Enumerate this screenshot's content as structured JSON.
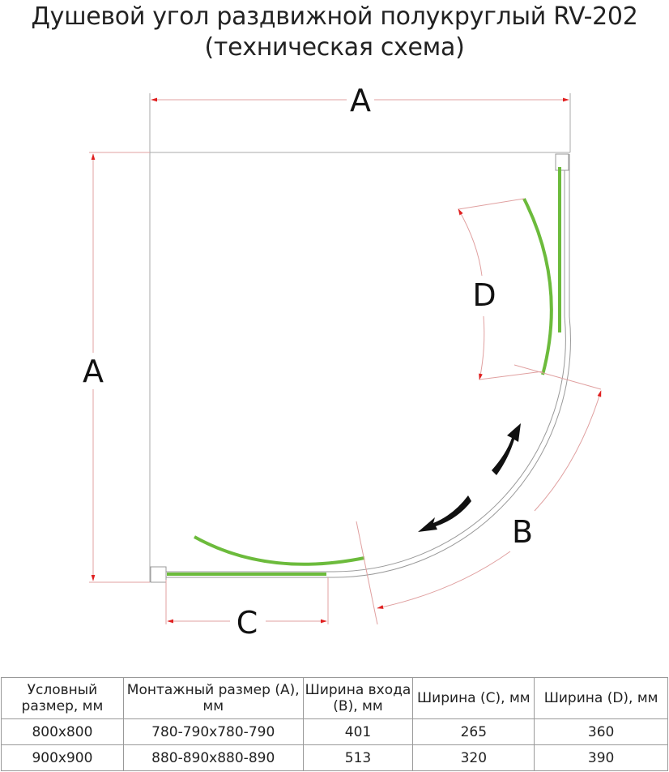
{
  "title": {
    "line1": "Душевой угол раздвижной полукруглый RV-202",
    "line2": "(техническая схема)"
  },
  "diagram": {
    "labels": {
      "a_top": "A",
      "a_left": "A",
      "b": "B",
      "c": "C",
      "d": "D"
    },
    "colors": {
      "glass": "#6cbb3c",
      "dimension": "#e0a0a0",
      "arrowhead": "#e02020",
      "frame": "#999999",
      "arrow": "#111111"
    }
  },
  "table": {
    "headers": [
      "Условный размер, мм",
      "Монтажный размер (A), мм",
      "Ширина входа (B), мм",
      "Ширина (C), мм",
      "Ширина (D), мм"
    ],
    "rows": [
      [
        "800x800",
        "780-790x780-790",
        "401",
        "265",
        "360"
      ],
      [
        "900x900",
        "880-890x880-890",
        "513",
        "320",
        "390"
      ]
    ]
  }
}
